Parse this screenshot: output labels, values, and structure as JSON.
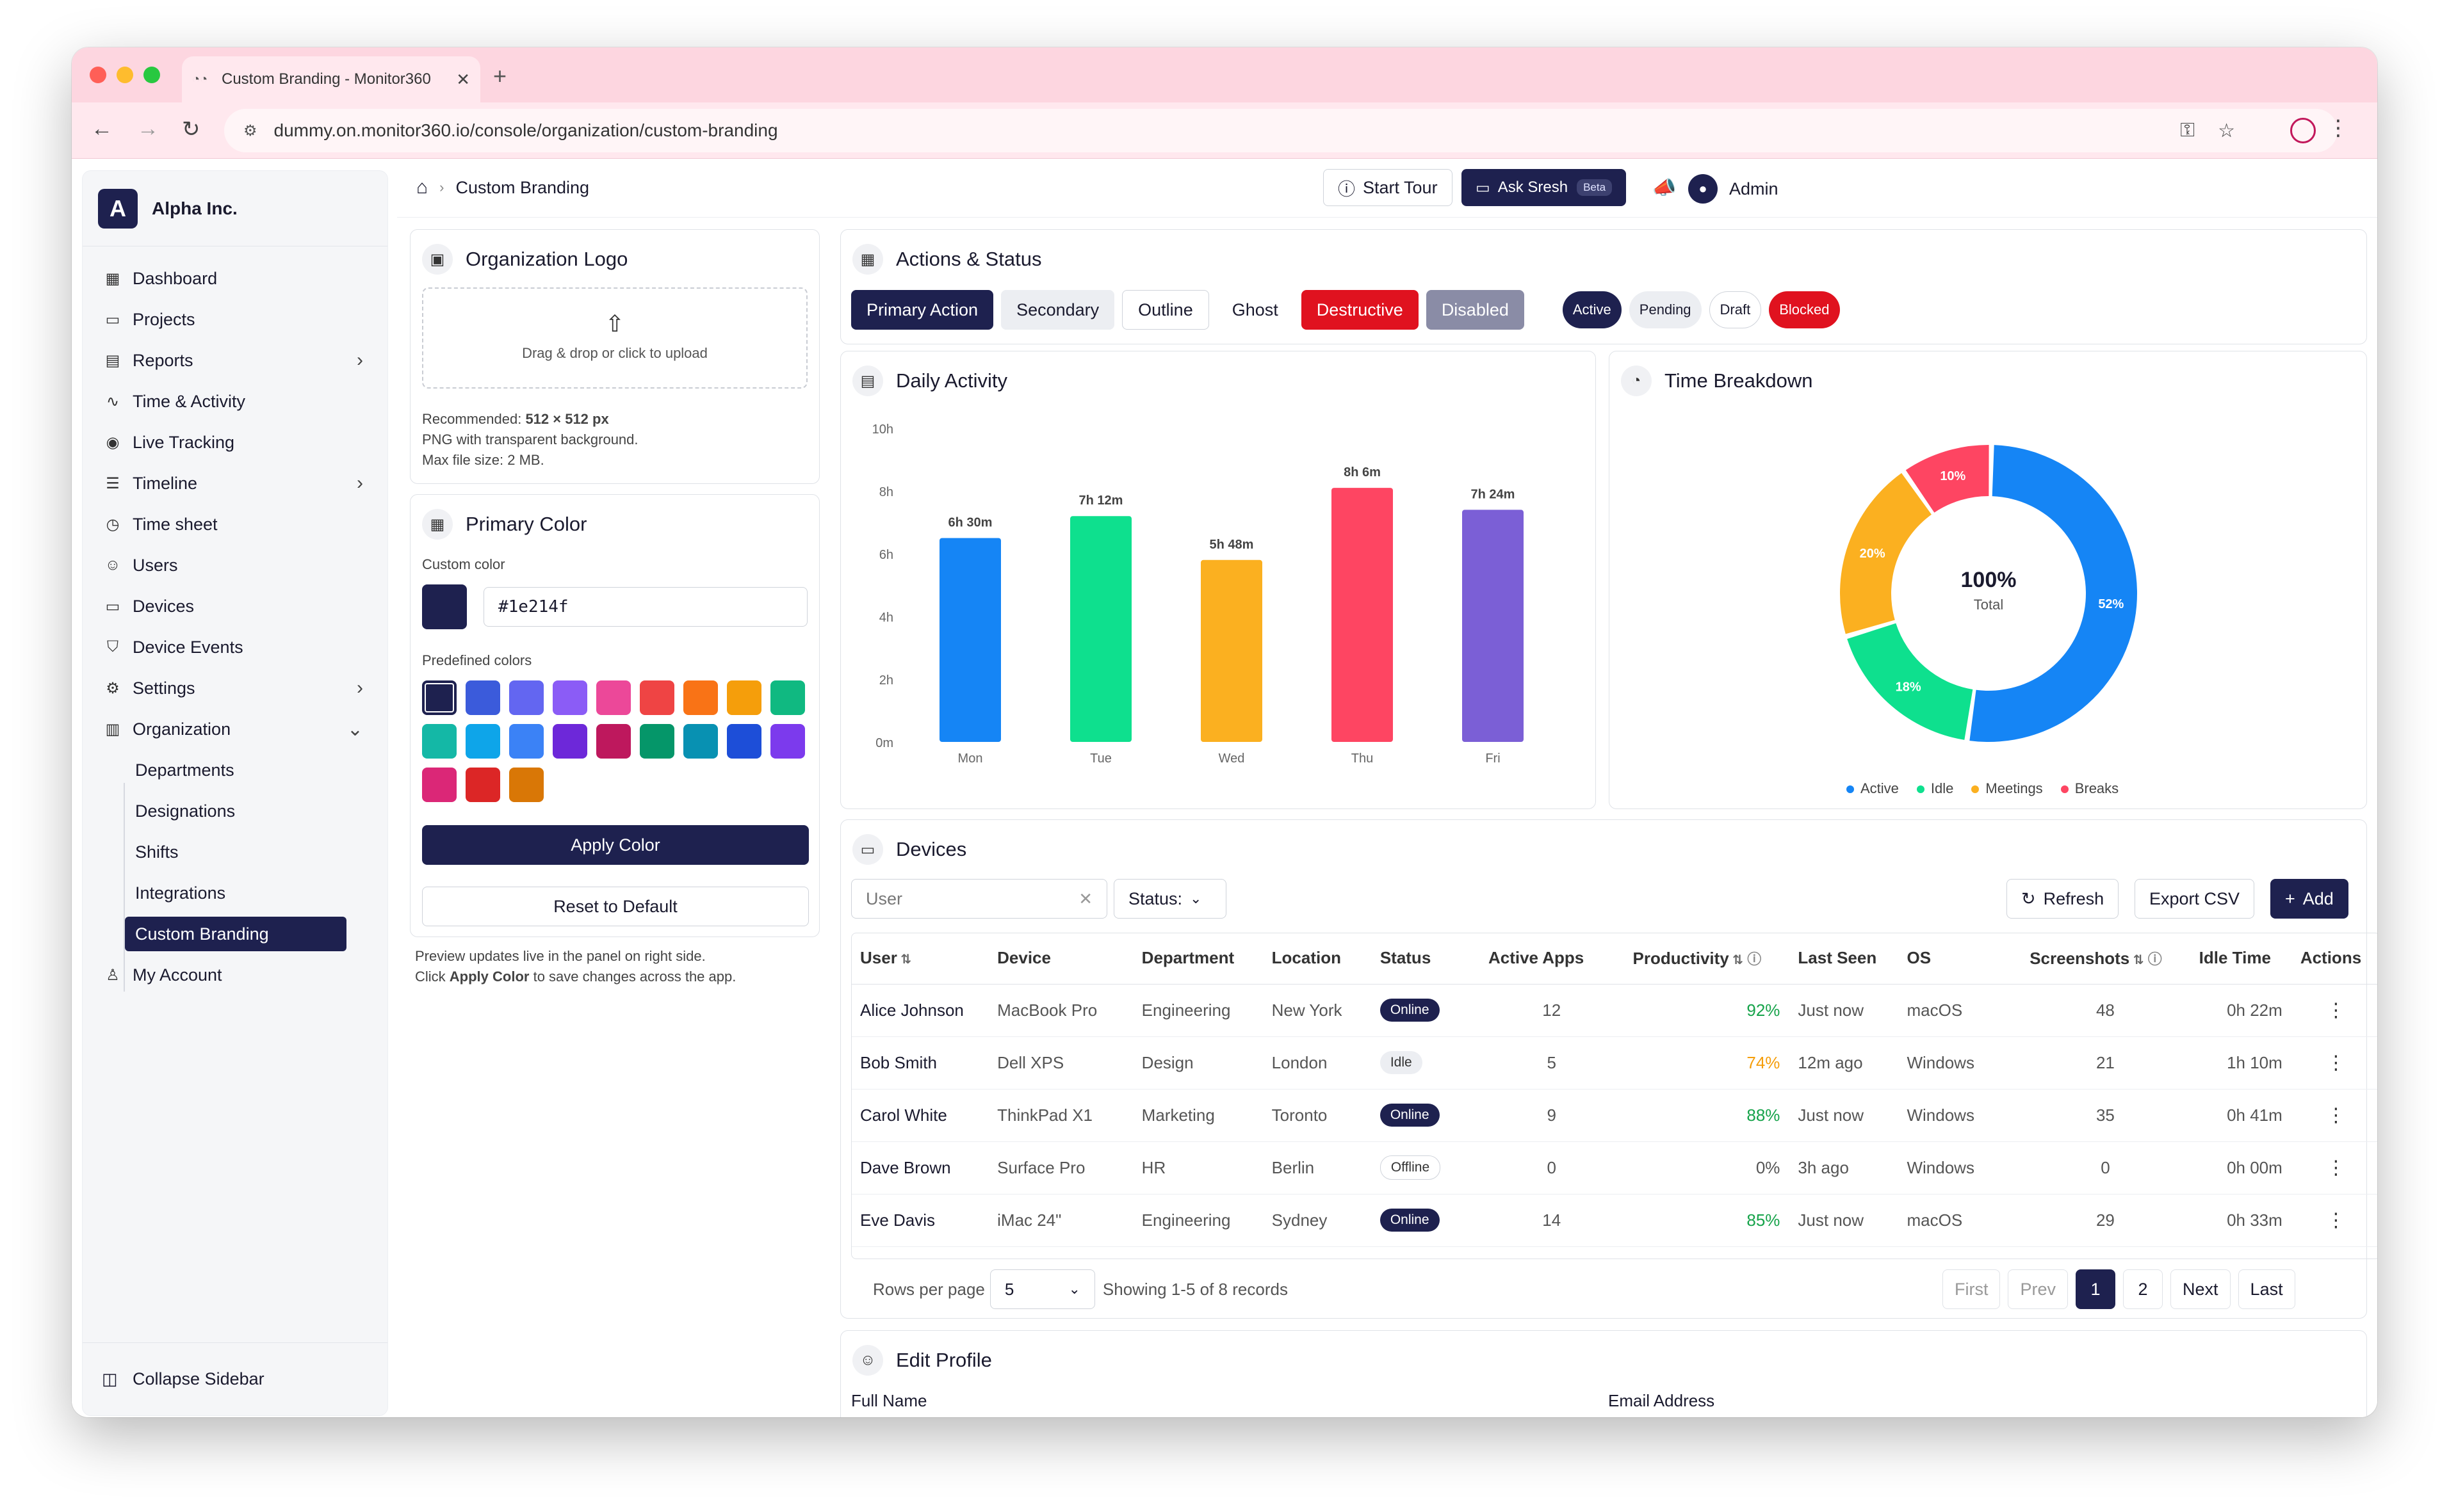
{
  "browser": {
    "tab_title": "Custom Branding - Monitor360",
    "url": "dummy.on.monitor360.io/console/organization/custom-branding"
  },
  "sidebar": {
    "org_initial": "A",
    "org_name": "Alpha Inc.",
    "items": [
      {
        "label": "Dashboard",
        "icon": "grid-icon"
      },
      {
        "label": "Projects",
        "icon": "folder-icon"
      },
      {
        "label": "Reports",
        "icon": "document-icon",
        "chevron": "›"
      },
      {
        "label": "Time & Activity",
        "icon": "pulse-icon"
      },
      {
        "label": "Live Tracking",
        "icon": "broadcast-icon"
      },
      {
        "label": "Timeline",
        "icon": "timeline-icon",
        "chevron": "›"
      },
      {
        "label": "Time sheet",
        "icon": "clock-icon"
      },
      {
        "label": "Users",
        "icon": "users-icon"
      },
      {
        "label": "Devices",
        "icon": "monitor-icon"
      },
      {
        "label": "Device Events",
        "icon": "shield-icon"
      },
      {
        "label": "Settings",
        "icon": "gear-icon",
        "chevron": "›"
      },
      {
        "label": "Organization",
        "icon": "building-icon",
        "chevron": "⌄"
      }
    ],
    "org_sub": [
      "Departments",
      "Designations",
      "Shifts",
      "Integrations",
      "Custom Branding"
    ],
    "my_account": "My Account",
    "collapse": "Collapse Sidebar"
  },
  "topbar": {
    "breadcrumb": "Custom Branding",
    "start_tour": "Start Tour",
    "ask_sresh": "Ask Sresh",
    "beta": "Beta",
    "admin": "Admin"
  },
  "logo_card": {
    "title": "Organization Logo",
    "upload_text": "Drag & drop or click to upload",
    "recommended_label": "Recommended:",
    "recommended_value": "512 × 512 px",
    "note2": "PNG with transparent background.",
    "note3": "Max file size: 2 MB."
  },
  "color_card": {
    "title": "Primary Color",
    "custom_label": "Custom color",
    "hex_value": "#1e214f",
    "predefined_label": "Predefined colors",
    "swatches": [
      "#1e214f",
      "#3b5bdb",
      "#6366f1",
      "#8b5cf6",
      "#ec4899",
      "#ef4444",
      "#f97316",
      "#f59e0b",
      "#10b981",
      "#14b8a6",
      "#0ea5e9",
      "#3b82f6",
      "#6d28d9",
      "#be185d",
      "#059669",
      "#0891b2",
      "#1d4ed8",
      "#7c3aed",
      "#db2777",
      "#dc2626",
      "#d97706"
    ],
    "apply": "Apply Color",
    "reset": "Reset to Default",
    "preview_note": "Preview updates live in the panel on right side.",
    "click_word": "Click",
    "apply_bold": "Apply Color",
    "save_note": "to save changes across the app."
  },
  "actions": {
    "title": "Actions & Status",
    "buttons": [
      "Primary Action",
      "Secondary",
      "Outline",
      "Ghost",
      "Destructive",
      "Disabled"
    ],
    "pills": [
      "Active",
      "Pending",
      "Draft",
      "Blocked"
    ]
  },
  "colors": {
    "primary": "#1e214f",
    "destructive": "#e0121f",
    "disabled": "#8a8ca6"
  },
  "chart_data": [
    {
      "type": "bar",
      "title": "Daily Activity",
      "categories": [
        "Mon",
        "Tue",
        "Wed",
        "Thu",
        "Fri"
      ],
      "values": [
        6.5,
        7.2,
        5.8,
        8.1,
        7.4
      ],
      "data_labels": [
        "6h 30m",
        "7h 12m",
        "5h 48m",
        "8h 6m",
        "7h 24m"
      ],
      "colors": [
        "#1585f5",
        "#0ee08e",
        "#fbb020",
        "#fe4562",
        "#7b5fd6"
      ],
      "y_ticks": [
        "0m",
        "2h",
        "4h",
        "6h",
        "8h",
        "10h"
      ],
      "ylim": [
        0,
        10
      ],
      "grid": false
    },
    {
      "type": "pie",
      "title": "Time Breakdown",
      "categories": [
        "Active",
        "Idle",
        "Meetings",
        "Breaks"
      ],
      "values": [
        52,
        18,
        20,
        10
      ],
      "colors": [
        "#1585f5",
        "#0ee08e",
        "#fbb020",
        "#fe4562"
      ],
      "center_value": "100%",
      "center_label": "Total",
      "legend": "bottom"
    }
  ],
  "devices": {
    "title": "Devices",
    "search_placeholder": "User",
    "status_label": "Status:",
    "refresh": "Refresh",
    "export": "Export CSV",
    "add": "Add",
    "columns": [
      "User",
      "Device",
      "Department",
      "Location",
      "Status",
      "Active Apps",
      "Productivity",
      "Last Seen",
      "OS",
      "Screenshots",
      "Idle Time",
      "Actions"
    ],
    "rows": [
      [
        "Alice Johnson",
        "MacBook Pro",
        "Engineering",
        "New York",
        "Online",
        "12",
        "92%",
        "Just now",
        "macOS",
        "48",
        "0h 22m"
      ],
      [
        "Bob Smith",
        "Dell XPS",
        "Design",
        "London",
        "Idle",
        "5",
        "74%",
        "12m ago",
        "Windows",
        "21",
        "1h 10m"
      ],
      [
        "Carol White",
        "ThinkPad X1",
        "Marketing",
        "Toronto",
        "Online",
        "9",
        "88%",
        "Just now",
        "Windows",
        "35",
        "0h 41m"
      ],
      [
        "Dave Brown",
        "Surface Pro",
        "HR",
        "Berlin",
        "Offline",
        "0",
        "0%",
        "3h ago",
        "Windows",
        "0",
        "0h 00m"
      ],
      [
        "Eve Davis",
        "iMac 24\"",
        "Engineering",
        "Sydney",
        "Online",
        "14",
        "85%",
        "Just now",
        "macOS",
        "29",
        "0h 33m"
      ]
    ],
    "prod_colors": [
      "#16a34a",
      "#f59e0b",
      "#16a34a",
      "#555555",
      "#16a34a"
    ],
    "rows_per_page_label": "Rows per page",
    "rows_per_page": "5",
    "showing": "Showing 1-5 of 8 records",
    "pager": [
      "First",
      "Prev",
      "1",
      "2",
      "Next",
      "Last"
    ]
  },
  "profile": {
    "title": "Edit Profile",
    "full_name": "Full Name",
    "email": "Email Address"
  }
}
